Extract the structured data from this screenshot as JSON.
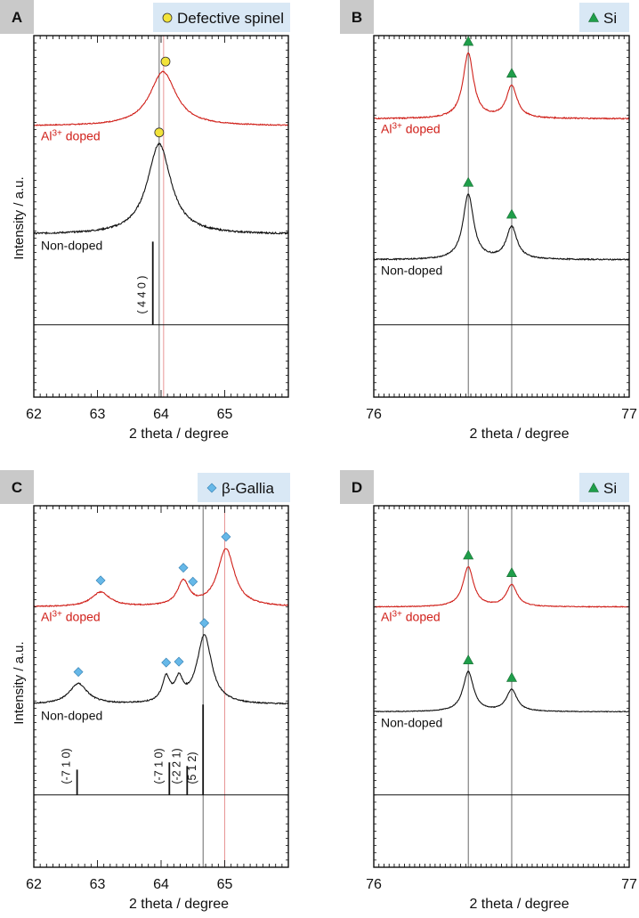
{
  "figure": {
    "ylabel": "Intensity / a.u.",
    "colors": {
      "doped": "#d0201a",
      "nondoped": "#111111",
      "ref_line": "#e58a8a",
      "spinel_marker": "#f2e33a",
      "si_marker": "#1f9e4a",
      "gallia_marker": "#66b8e8",
      "legend_bg": "#d9e8f5",
      "letter_bg": "#c9c9c9"
    }
  },
  "chart_data": [
    {
      "panel": "A",
      "type": "line",
      "legend": {
        "symbol": "circle",
        "label": "Defective spinel"
      },
      "xlabel": "2 theta / degree",
      "xlim": [
        62,
        66
      ],
      "xticks": [
        62,
        63,
        64,
        65
      ],
      "xtick_labels": [
        "62",
        "63",
        "64",
        "65"
      ],
      "ylim": [
        0,
        100
      ],
      "baseline_y": 20,
      "series": [
        {
          "name": "Al³⁺ doped",
          "label_base": "Al",
          "label_sup": "3+",
          "label_rest": " doped",
          "color": "doped",
          "offset": 75,
          "amplitude": 15,
          "peaks": [
            {
              "center": 64.03,
              "height": 1.0,
              "width": 0.5
            }
          ],
          "markers": [
            64.07
          ]
        },
        {
          "name": "Non-doped",
          "color": "nondoped",
          "offset": 45,
          "amplitude": 25,
          "peaks": [
            {
              "center": 63.97,
              "height": 1.0,
              "width": 0.45
            }
          ],
          "markers": [
            63.97
          ]
        }
      ],
      "reference_lines": [
        {
          "x": 63.97,
          "color": "nondoped"
        },
        {
          "x": 64.04,
          "color": "ref_line"
        }
      ],
      "reflections": [
        {
          "x": 63.87,
          "height": 23,
          "label": "( 4 4 0 )"
        }
      ]
    },
    {
      "panel": "B",
      "type": "line",
      "legend": {
        "symbol": "triangle",
        "label": "Si"
      },
      "xlabel": "2 theta / degree",
      "xlim": [
        76,
        77
      ],
      "xticks": [
        76,
        77
      ],
      "xtick_labels": [
        "76",
        "77"
      ],
      "ylim": [
        0,
        100
      ],
      "baseline_y": 20,
      "series": [
        {
          "name": "Al³⁺ doped",
          "label_base": "Al",
          "label_sup": "3+",
          "label_rest": " doped",
          "color": "doped",
          "offset": 77,
          "amplitude": 18,
          "peaks": [
            {
              "center": 76.37,
              "height": 1.0,
              "width": 0.05
            },
            {
              "center": 76.54,
              "height": 0.5,
              "width": 0.05
            }
          ],
          "markers": [
            76.37,
            76.54
          ]
        },
        {
          "name": "Non-doped",
          "color": "nondoped",
          "offset": 38,
          "amplitude": 18,
          "peaks": [
            {
              "center": 76.37,
              "height": 1.0,
              "width": 0.05
            },
            {
              "center": 76.54,
              "height": 0.5,
              "width": 0.05
            }
          ],
          "markers": [
            76.37,
            76.54
          ]
        }
      ],
      "reference_lines": [
        {
          "x": 76.37,
          "color": "nondoped"
        },
        {
          "x": 76.54,
          "color": "nondoped"
        }
      ],
      "reflections": []
    },
    {
      "panel": "C",
      "type": "line",
      "legend": {
        "symbol": "diamond",
        "label": "β-Gallia"
      },
      "xlabel": "2 theta / degree",
      "xlim": [
        62,
        66
      ],
      "xticks": [
        62,
        63,
        64,
        65
      ],
      "xtick_labels": [
        "62",
        "63",
        "64",
        "65"
      ],
      "ylim": [
        0,
        100
      ],
      "baseline_y": 20,
      "series": [
        {
          "name": "Al³⁺ doped",
          "label_base": "Al",
          "label_sup": "3+",
          "label_rest": " doped",
          "color": "doped",
          "offset": 72,
          "amplitude": 16,
          "peaks": [
            {
              "center": 63.05,
              "height": 0.25,
              "width": 0.35
            },
            {
              "center": 64.35,
              "height": 0.42,
              "width": 0.22
            },
            {
              "center": 65.02,
              "height": 1.0,
              "width": 0.32
            }
          ],
          "markers": [
            63.05,
            64.35,
            64.5,
            65.02
          ]
        },
        {
          "name": "Non-doped",
          "color": "nondoped",
          "offset": 45,
          "amplitude": 19,
          "peaks": [
            {
              "center": 62.7,
              "height": 0.3,
              "width": 0.35
            },
            {
              "center": 64.08,
              "height": 0.35,
              "width": 0.15
            },
            {
              "center": 64.28,
              "height": 0.3,
              "width": 0.15
            },
            {
              "center": 64.68,
              "height": 1.0,
              "width": 0.28
            }
          ],
          "markers": [
            62.7,
            64.08,
            64.28,
            64.68
          ]
        }
      ],
      "reference_lines": [
        {
          "x": 64.66,
          "color": "nondoped"
        },
        {
          "x": 65.0,
          "color": "ref_line"
        }
      ],
      "reflections": [
        {
          "x": 62.68,
          "height": 7,
          "label": "(-7 1 0)"
        },
        {
          "x": 64.13,
          "height": 9,
          "label": "(-7 1 0)"
        },
        {
          "x": 64.41,
          "height": 8,
          "label": "(-2 2 1)"
        },
        {
          "x": 64.66,
          "height": 25,
          "label": "(5 1 2)"
        }
      ]
    },
    {
      "panel": "D",
      "type": "line",
      "legend": {
        "symbol": "triangle",
        "label": "Si"
      },
      "xlabel": "2 theta / degree",
      "xlim": [
        76,
        77
      ],
      "xticks": [
        76,
        77
      ],
      "xtick_labels": [
        "76",
        "77"
      ],
      "ylim": [
        0,
        100
      ],
      "baseline_y": 20,
      "series": [
        {
          "name": "Al³⁺ doped",
          "label_base": "Al",
          "label_sup": "3+",
          "label_rest": " doped",
          "color": "doped",
          "offset": 72,
          "amplitude": 11,
          "peaks": [
            {
              "center": 76.37,
              "height": 1.0,
              "width": 0.05
            },
            {
              "center": 76.54,
              "height": 0.55,
              "width": 0.05
            }
          ],
          "markers": [
            76.37,
            76.54
          ]
        },
        {
          "name": "Non-doped",
          "color": "nondoped",
          "offset": 43,
          "amplitude": 11,
          "peaks": [
            {
              "center": 76.37,
              "height": 1.0,
              "width": 0.05
            },
            {
              "center": 76.54,
              "height": 0.55,
              "width": 0.05
            }
          ],
          "markers": [
            76.37,
            76.54
          ]
        }
      ],
      "reference_lines": [
        {
          "x": 76.37,
          "color": "nondoped"
        },
        {
          "x": 76.54,
          "color": "nondoped"
        }
      ],
      "reflections": []
    }
  ]
}
